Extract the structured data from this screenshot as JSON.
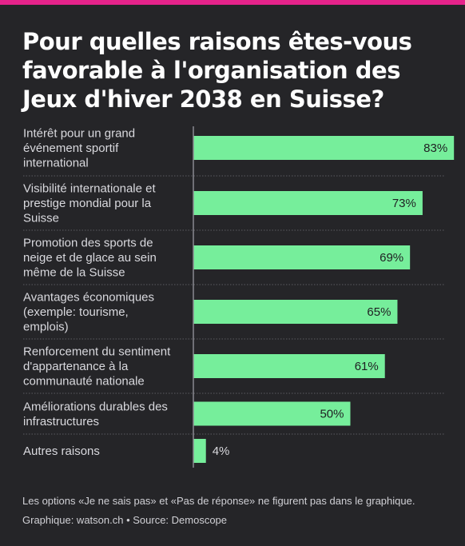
{
  "title": "Pour quelles raisons êtes-vous favorable à l'organisation des Jeux d'hiver 2038 en Suisse?",
  "footnote": "Les options «Je ne sais pas» et «Pas de réponse» ne figurent pas dans le graphique.",
  "credit": "Graphique: watson.ch • Source: Demoscope",
  "colors": {
    "bar": "#76ee9b",
    "background": "#252528",
    "accent": "#e5238a"
  },
  "chart_data": {
    "type": "bar",
    "orientation": "horizontal",
    "title": "Pour quelles raisons êtes-vous favorable à l'organisation des Jeux d'hiver 2038 en Suisse?",
    "categories": [
      [
        "Intérêt pour un grand",
        "événement sportif",
        "international"
      ],
      [
        "Visibilité internationale et",
        "prestige mondial pour la",
        "Suisse"
      ],
      [
        "Promotion des sports de",
        "neige et de glace au sein",
        "même de la Suisse"
      ],
      [
        "Avantages économiques",
        "(exemple: tourisme,",
        "emplois)"
      ],
      [
        "Renforcement du sentiment",
        "d'appartenance à la",
        "communauté nationale"
      ],
      [
        "Améliorations durables des",
        "infrastructures"
      ],
      [
        "Autres raisons"
      ]
    ],
    "values": [
      83,
      73,
      69,
      65,
      61,
      50,
      4
    ],
    "value_labels": [
      "83%",
      "73%",
      "69%",
      "65%",
      "61%",
      "50%",
      "4%"
    ],
    "unit": "%",
    "xlim": [
      0,
      100
    ],
    "grid": false,
    "legend": "none"
  }
}
